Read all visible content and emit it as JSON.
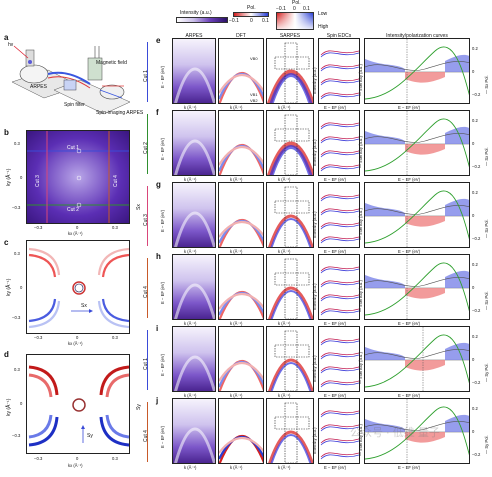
{
  "colorbars": {
    "intensity": {
      "label": "Intensity (a.u.)"
    },
    "pol": {
      "label": "Pol.",
      "ticks": [
        "−0.1",
        "0",
        "0.1"
      ]
    },
    "pol2d": {
      "label": "Pol.",
      "ticks": [
        "−0.1",
        "0",
        "0.1"
      ],
      "low": "Low",
      "high": "High",
      "side": "Intensity"
    }
  },
  "panel_a": {
    "letter": "a",
    "labels": {
      "hv": "hν",
      "arpes": "ARPES",
      "magnetic_field": "Magnetic field",
      "spin_filter": "Spin filter",
      "spin_imaging": "Spin-imaging ARPES"
    }
  },
  "panel_b": {
    "letter": "b",
    "cuts": [
      "Cut 1",
      "Cut 2",
      "Cut 3",
      "Cut 4"
    ],
    "yticks": [
      "0.3",
      "0",
      "−0.3"
    ],
    "xticks": [
      "−0.3",
      "0",
      "0.3"
    ],
    "xlabel": "kx (Å⁻¹)",
    "ylabel": "ky (Å⁻¹)"
  },
  "panel_c": {
    "letter": "c",
    "yticks": [
      "0.3",
      "0",
      "−0.3"
    ],
    "xticks": [
      "−0.3",
      "0",
      "0.3"
    ],
    "xlabel": "kx (Å⁻¹)",
    "ylabel": "ky (Å⁻¹)",
    "arrow_label": "Sx"
  },
  "panel_d": {
    "letter": "d",
    "yticks": [
      "0.3",
      "0",
      "−0.3"
    ],
    "xticks": [
      "−0.3",
      "0",
      "0.3"
    ],
    "xlabel": "kx (Å⁻¹)",
    "ylabel": "ky (Å⁻¹)",
    "arrow_label": "Sy"
  },
  "columns": {
    "arpes": "ARPES",
    "dft": "DFT",
    "sarpes": "SARPES",
    "spin_edcs": "Spin EDCs",
    "curves": "Intensity/polarization curves"
  },
  "rows": [
    {
      "letter": "e",
      "cut": "Cut 1",
      "color": "#3a4bd8"
    },
    {
      "letter": "f",
      "cut": "Cut 2",
      "color": "#2f8f2f"
    },
    {
      "letter": "g",
      "cut": "Cut 3",
      "color": "#d9467a"
    },
    {
      "letter": "h",
      "cut": "Cut 4",
      "color": "#c85a2a"
    },
    {
      "letter": "i",
      "cut": "Cut 1",
      "color": "#3a4bd8"
    },
    {
      "letter": "j",
      "cut": "Cut 4",
      "color": "#c85a2a"
    }
  ],
  "band_labels": {
    "vb0": "VB0",
    "vb1": "VB1",
    "vb2": "VB2"
  },
  "spin_labels": {
    "sx": "Sx",
    "sy": "Sy"
  },
  "axis_text": {
    "e_ef": "E − EF (eV)",
    "k": "k (Å⁻¹)",
    "intensity": "Intensity (a.u.)",
    "int_au": "— Intensity (a.u.)",
    "sx_pol": "— Sx Pol.",
    "sy_pol": "— Sy Pol.",
    "e_ticks": [
      "0",
      "−0.2",
      "−0.4",
      "−0.6"
    ],
    "k_ticks": [
      "−0.3",
      "0",
      "0.3"
    ],
    "edc_ticks": [
      "−0.35",
      "−0.12",
      "0.35"
    ],
    "curve_x": [
      "−0.2",
      "0",
      "0.2",
      "0.4"
    ],
    "pol_ticks": [
      "0.2",
      "0",
      "−0.2"
    ]
  },
  "watermark": "公众号 · 低维 量子"
}
